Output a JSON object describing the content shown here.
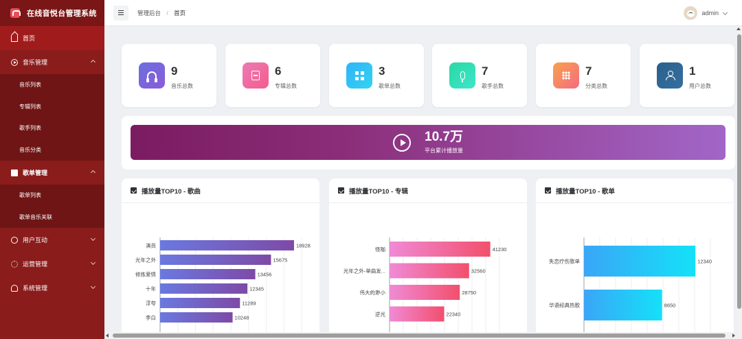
{
  "app": {
    "title": "在线音悦台管理系统"
  },
  "sidebar": {
    "home": "首页",
    "music_group": {
      "label": "音乐管理",
      "items": [
        "音乐列表",
        "专辑列表",
        "歌手列表",
        "音乐分类"
      ]
    },
    "playlist_group": {
      "label": "歌单管理",
      "items": [
        "歌单列表",
        "歌单音乐关联"
      ]
    },
    "interaction": "用户互动",
    "operation": "运营管理",
    "system": "系统管理"
  },
  "header": {
    "breadcrumb": [
      "管理后台",
      "首页"
    ],
    "user": "admin"
  },
  "stats": [
    {
      "value": "9",
      "label": "音乐总数",
      "icon": "headphones-icon",
      "color": [
        "#6b6fe0",
        "#8a5bd8"
      ]
    },
    {
      "value": "6",
      "label": "专辑总数",
      "icon": "album-icon",
      "color": [
        "#ec7ab5",
        "#f45c8d"
      ]
    },
    {
      "value": "3",
      "label": "歌单总数",
      "icon": "grid-icon",
      "color": [
        "#2fb3f7",
        "#34d3f0"
      ]
    },
    {
      "value": "7",
      "label": "歌手总数",
      "icon": "mic-icon",
      "color": [
        "#29d7a6",
        "#3fe6c9"
      ]
    },
    {
      "value": "7",
      "label": "分类总数",
      "icon": "category-icon",
      "color": [
        "#f9a24d",
        "#f56a82"
      ]
    },
    {
      "value": "1",
      "label": "用户总数",
      "icon": "user-icon",
      "color": [
        "#2a5f8c",
        "#356fa0"
      ]
    }
  ],
  "banner": {
    "value": "10.7万",
    "label": "平台累计播放量"
  },
  "charts": [
    {
      "title": "播放量TOP10 - 歌曲"
    },
    {
      "title": "播放量TOP10 - 专辑"
    },
    {
      "title": "播放量TOP10 - 歌单"
    }
  ],
  "chart_data": [
    {
      "type": "bar",
      "orientation": "horizontal",
      "title": "播放量TOP10 - 歌曲",
      "categories": [
        "演员",
        "光年之外",
        "修炼爱情",
        "十年",
        "浮夸",
        "李白"
      ],
      "values": [
        18928,
        15675,
        13456,
        12345,
        11289,
        10248
      ],
      "xlim": [
        0,
        20000
      ],
      "gradient": [
        "#6a79e0",
        "#7e4aa6"
      ]
    },
    {
      "type": "bar",
      "orientation": "horizontal",
      "title": "播放量TOP10 - 专辑",
      "categories": [
        "怪咖",
        "光年之外-单曲发...",
        "伟大的渺小",
        "逆光"
      ],
      "values": [
        41230,
        32560,
        28750,
        22340
      ],
      "xlim": [
        0,
        45000
      ],
      "gradient": [
        "#f08ad6",
        "#f24f6c"
      ]
    },
    {
      "type": "bar",
      "orientation": "horizontal",
      "title": "播放量TOP10 - 歌单",
      "categories": [
        "失恋疗伤歌单",
        "华语经典热歌"
      ],
      "values": [
        12340,
        8650
      ],
      "xlim": [
        0,
        14000
      ],
      "gradient": [
        "#3aa6f7",
        "#14e1f8"
      ]
    }
  ]
}
